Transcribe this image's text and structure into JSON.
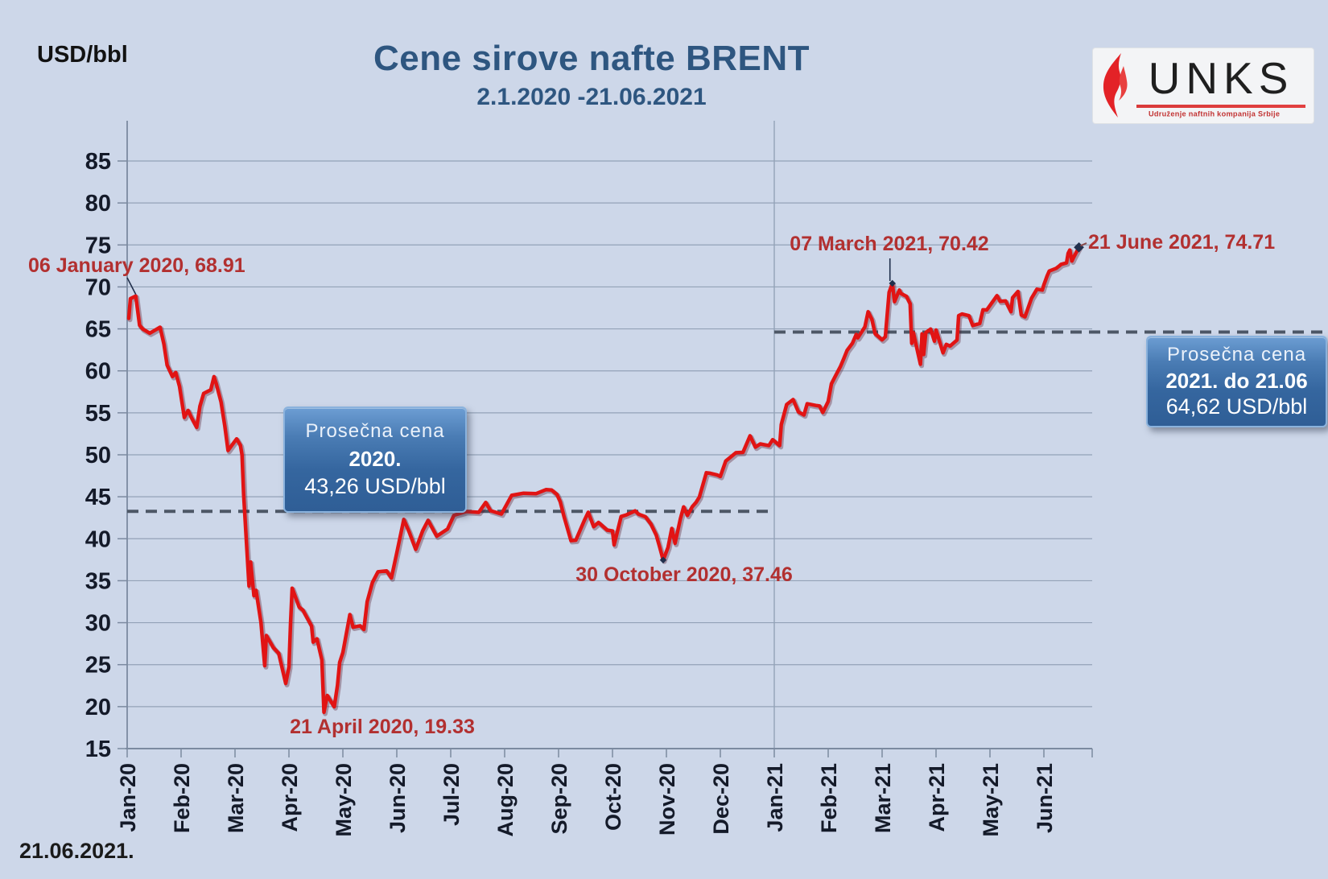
{
  "header": {
    "title": "Cene sirove nafte BRENT",
    "subtitle": "2.1.2020 -21.06.2021",
    "unit_label": "USD/bbl"
  },
  "footer": {
    "date": "21.06.2021."
  },
  "logo": {
    "wordmark": "UNKS",
    "tagline": "Udruženje naftnih kompanija Srbije",
    "flame_color": "#e32227"
  },
  "annotations": {
    "jan6": {
      "label": "06 January 2020, 68.91"
    },
    "apr21": {
      "label": "21 April 2020, 19.33"
    },
    "oct30": {
      "label": "30 October 2020, 37.46"
    },
    "mar7": {
      "label": "07 March 2021, 70.42"
    },
    "jun21": {
      "label": "21 June 2021, 74.71"
    }
  },
  "avg_2020": {
    "line1": "Prosečna  cena",
    "line2": "2020.",
    "line3": "43,26 USD/bbl",
    "value": 43.26
  },
  "avg_2021": {
    "line1": "Prosečna  cena",
    "line2": "2021. do 21.06",
    "line3": "64,62 USD/bbl",
    "value": 64.62
  },
  "chart_data": {
    "type": "line",
    "title": "Cene sirove nafte BRENT",
    "subtitle": "2.1.2020 -21.06.2021",
    "ylabel": "USD/bbl",
    "ylim": [
      15,
      85
    ],
    "ytick_step": 5,
    "grid": true,
    "categories": [
      "Jan-20",
      "Feb-20",
      "Mar-20",
      "Apr-20",
      "May-20",
      "Jun-20",
      "Jul-20",
      "Aug-20",
      "Sep-20",
      "Oct-20",
      "Nov-20",
      "Dec-20",
      "Jan-21",
      "Feb-21",
      "Mar-21",
      "Apr-21",
      "May-21",
      "Jun-21"
    ],
    "averages": [
      {
        "name": "Prosečna cena 2020.",
        "value": 43.26,
        "span_months": [
          0,
          12
        ]
      },
      {
        "name": "Prosečna cena 2021. do 21.06",
        "value": 64.62,
        "span_months": [
          12,
          19
        ]
      }
    ],
    "key_points": [
      {
        "date": "06 January 2020",
        "month": 0.16,
        "value": 68.91
      },
      {
        "date": "21 April 2020",
        "month": 3.65,
        "value": 19.33
      },
      {
        "date": "30 October 2020",
        "month": 9.94,
        "value": 37.46
      },
      {
        "date": "07 March 2021",
        "month": 14.19,
        "value": 70.42
      },
      {
        "date": "21 June 2021",
        "month": 17.65,
        "value": 74.71
      }
    ],
    "series": [
      [
        0.03,
        66.25
      ],
      [
        0.06,
        68.6
      ],
      [
        0.16,
        68.91
      ],
      [
        0.23,
        65.44
      ],
      [
        0.29,
        64.98
      ],
      [
        0.42,
        64.49
      ],
      [
        0.52,
        64.85
      ],
      [
        0.61,
        65.2
      ],
      [
        0.68,
        63.21
      ],
      [
        0.74,
        60.69
      ],
      [
        0.84,
        59.32
      ],
      [
        0.9,
        59.81
      ],
      [
        0.97,
        58.16
      ],
      [
        1.06,
        54.45
      ],
      [
        1.13,
        55.28
      ],
      [
        1.19,
        54.47
      ],
      [
        1.29,
        53.27
      ],
      [
        1.35,
        55.79
      ],
      [
        1.42,
        57.32
      ],
      [
        1.55,
        57.75
      ],
      [
        1.61,
        59.31
      ],
      [
        1.65,
        58.5
      ],
      [
        1.74,
        56.3
      ],
      [
        1.81,
        53.43
      ],
      [
        1.87,
        50.52
      ],
      [
        2.03,
        51.9
      ],
      [
        2.1,
        51.13
      ],
      [
        2.13,
        49.99
      ],
      [
        2.16,
        45.27
      ],
      [
        2.26,
        34.36
      ],
      [
        2.29,
        37.22
      ],
      [
        2.35,
        33.22
      ],
      [
        2.39,
        33.85
      ],
      [
        2.48,
        30.05
      ],
      [
        2.55,
        24.88
      ],
      [
        2.58,
        28.47
      ],
      [
        2.71,
        27.03
      ],
      [
        2.81,
        26.34
      ],
      [
        2.94,
        22.76
      ],
      [
        3.0,
        24.74
      ],
      [
        3.03,
        29.94
      ],
      [
        3.06,
        34.11
      ],
      [
        3.19,
        31.87
      ],
      [
        3.26,
        31.48
      ],
      [
        3.42,
        29.6
      ],
      [
        3.45,
        27.69
      ],
      [
        3.52,
        28.08
      ],
      [
        3.61,
        25.57
      ],
      [
        3.65,
        19.33
      ],
      [
        3.71,
        21.33
      ],
      [
        3.84,
        19.99
      ],
      [
        3.9,
        22.54
      ],
      [
        3.94,
        25.27
      ],
      [
        4.0,
        26.44
      ],
      [
        4.13,
        30.97
      ],
      [
        4.19,
        29.46
      ],
      [
        4.32,
        29.63
      ],
      [
        4.39,
        29.19
      ],
      [
        4.45,
        32.5
      ],
      [
        4.55,
        34.81
      ],
      [
        4.65,
        36.06
      ],
      [
        4.81,
        36.17
      ],
      [
        4.9,
        35.33
      ],
      [
        5.0,
        38.32
      ],
      [
        5.13,
        42.3
      ],
      [
        5.23,
        40.8
      ],
      [
        5.35,
        38.73
      ],
      [
        5.48,
        40.96
      ],
      [
        5.58,
        42.19
      ],
      [
        5.74,
        40.31
      ],
      [
        5.94,
        41.15
      ],
      [
        6.06,
        42.8
      ],
      [
        6.29,
        43.24
      ],
      [
        6.52,
        43.14
      ],
      [
        6.65,
        44.32
      ],
      [
        6.74,
        43.34
      ],
      [
        6.94,
        42.94
      ],
      [
        7.13,
        45.17
      ],
      [
        7.35,
        45.43
      ],
      [
        7.58,
        45.37
      ],
      [
        7.77,
        45.86
      ],
      [
        7.87,
        45.81
      ],
      [
        7.97,
        45.28
      ],
      [
        8.03,
        44.43
      ],
      [
        8.1,
        42.66
      ],
      [
        8.23,
        39.78
      ],
      [
        8.32,
        39.83
      ],
      [
        8.48,
        42.22
      ],
      [
        8.55,
        43.15
      ],
      [
        8.65,
        41.44
      ],
      [
        8.74,
        41.94
      ],
      [
        8.9,
        41.03
      ],
      [
        9.0,
        40.93
      ],
      [
        9.03,
        39.27
      ],
      [
        9.16,
        42.65
      ],
      [
        9.26,
        42.85
      ],
      [
        9.42,
        43.32
      ],
      [
        9.48,
        42.93
      ],
      [
        9.61,
        42.62
      ],
      [
        9.71,
        41.77
      ],
      [
        9.81,
        40.46
      ],
      [
        9.87,
        39.12
      ],
      [
        9.94,
        37.46
      ],
      [
        10.03,
        38.97
      ],
      [
        10.1,
        41.23
      ],
      [
        10.16,
        39.45
      ],
      [
        10.26,
        42.4
      ],
      [
        10.32,
        43.8
      ],
      [
        10.39,
        42.78
      ],
      [
        10.48,
        43.82
      ],
      [
        10.55,
        44.34
      ],
      [
        10.61,
        44.96
      ],
      [
        10.74,
        47.86
      ],
      [
        10.81,
        47.8
      ],
      [
        10.94,
        47.59
      ],
      [
        11.0,
        47.42
      ],
      [
        11.1,
        49.25
      ],
      [
        11.29,
        50.25
      ],
      [
        11.42,
        50.29
      ],
      [
        11.55,
        52.26
      ],
      [
        11.65,
        50.91
      ],
      [
        11.74,
        51.29
      ],
      [
        11.9,
        51.09
      ],
      [
        11.97,
        51.8
      ],
      [
        12.1,
        51.09
      ],
      [
        12.13,
        53.6
      ],
      [
        12.23,
        55.99
      ],
      [
        12.35,
        56.58
      ],
      [
        12.45,
        55.1
      ],
      [
        12.55,
        54.75
      ],
      [
        12.61,
        56.08
      ],
      [
        12.77,
        55.88
      ],
      [
        12.84,
        55.81
      ],
      [
        12.9,
        55.04
      ],
      [
        13.0,
        56.35
      ],
      [
        13.06,
        58.46
      ],
      [
        13.13,
        59.34
      ],
      [
        13.23,
        60.56
      ],
      [
        13.29,
        61.47
      ],
      [
        13.35,
        62.43
      ],
      [
        13.45,
        63.3
      ],
      [
        13.52,
        64.34
      ],
      [
        13.55,
        63.93
      ],
      [
        13.68,
        65.24
      ],
      [
        13.74,
        67.04
      ],
      [
        13.81,
        66.13
      ],
      [
        13.87,
        64.42
      ],
      [
        14.0,
        63.69
      ],
      [
        14.06,
        64.07
      ],
      [
        14.13,
        69.36
      ],
      [
        14.19,
        70.42
      ],
      [
        14.23,
        68.24
      ],
      [
        14.32,
        69.63
      ],
      [
        14.35,
        69.22
      ],
      [
        14.45,
        68.88
      ],
      [
        14.52,
        68.0
      ],
      [
        14.55,
        63.28
      ],
      [
        14.58,
        64.53
      ],
      [
        14.71,
        60.79
      ],
      [
        14.74,
        64.41
      ],
      [
        14.77,
        61.95
      ],
      [
        14.81,
        64.57
      ],
      [
        14.9,
        64.98
      ],
      [
        14.97,
        63.54
      ],
      [
        15.0,
        64.86
      ],
      [
        15.13,
        62.15
      ],
      [
        15.19,
        63.16
      ],
      [
        15.26,
        62.95
      ],
      [
        15.39,
        63.67
      ],
      [
        15.42,
        66.58
      ],
      [
        15.48,
        66.77
      ],
      [
        15.61,
        66.57
      ],
      [
        15.68,
        65.4
      ],
      [
        15.81,
        65.65
      ],
      [
        15.87,
        67.27
      ],
      [
        15.94,
        67.25
      ],
      [
        16.13,
        68.96
      ],
      [
        16.19,
        68.28
      ],
      [
        16.29,
        68.32
      ],
      [
        16.39,
        67.05
      ],
      [
        16.42,
        68.71
      ],
      [
        16.52,
        69.46
      ],
      [
        16.58,
        66.66
      ],
      [
        16.65,
        66.44
      ],
      [
        16.77,
        68.65
      ],
      [
        16.87,
        69.72
      ],
      [
        16.97,
        69.63
      ],
      [
        17.0,
        70.25
      ],
      [
        17.06,
        71.31
      ],
      [
        17.1,
        71.89
      ],
      [
        17.23,
        72.22
      ],
      [
        17.29,
        72.52
      ],
      [
        17.32,
        72.69
      ],
      [
        17.42,
        72.86
      ],
      [
        17.45,
        73.99
      ],
      [
        17.48,
        74.39
      ],
      [
        17.52,
        73.08
      ],
      [
        17.55,
        73.51
      ],
      [
        17.65,
        74.71
      ]
    ],
    "colors": {
      "background": "#cdd7e9",
      "line": "#e11414",
      "line_shadow": "rgba(90,20,40,0.35)",
      "grid": "#93a2b7",
      "axis": "#7c8aa0",
      "tick_label": "#141a29",
      "annotation": "#b23030",
      "dashed_avg": "#4d5766",
      "box_blue": "#35669f",
      "title_blue": "#2e5680",
      "marker_navy": "#22304d"
    }
  }
}
